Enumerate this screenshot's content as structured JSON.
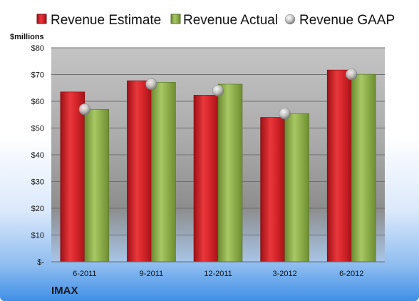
{
  "chart_data": {
    "type": "bar",
    "ylabel": "$millions",
    "footer_label": "IMAX",
    "categories": [
      "6-2011",
      "9-2011",
      "12-2011",
      "3-2012",
      "6-2012"
    ],
    "series": [
      {
        "name": "Revenue Estimate",
        "kind": "bar",
        "color": "#d6262b",
        "values": [
          63.5,
          67.7,
          62.3,
          54.0,
          71.7
        ]
      },
      {
        "name": "Revenue Actual",
        "kind": "bar",
        "color": "#8fb04d",
        "values": [
          57.0,
          67.1,
          66.4,
          55.4,
          70.1
        ]
      },
      {
        "name": "Revenue GAAP",
        "kind": "marker",
        "color": "#c8c8c8",
        "values": [
          57.0,
          66.4,
          64.0,
          55.4,
          70.1
        ]
      }
    ],
    "ylim": [
      0,
      80
    ],
    "yticks": [
      0,
      10,
      20,
      30,
      40,
      50,
      60,
      70,
      80
    ],
    "ytick_labels": [
      "$-",
      "$10",
      "$20",
      "$30",
      "$40",
      "$50",
      "$60",
      "$70",
      "$80"
    ],
    "legend_position": "top",
    "grid": true
  }
}
